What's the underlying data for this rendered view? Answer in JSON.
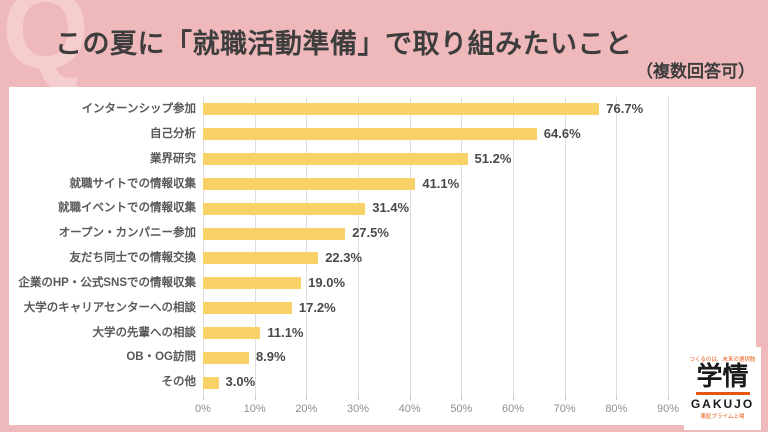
{
  "header": {
    "q_watermark": "Q",
    "title": "この夏に「就職活動準備」で取り組みたいこと",
    "note": "（複数回答可）"
  },
  "chart_data": {
    "type": "bar",
    "orientation": "horizontal",
    "title": "この夏に「就職活動準備」で取り組みたいこと",
    "subtitle": "（複数回答可）",
    "categories": [
      "インターンシップ参加",
      "自己分析",
      "業界研究",
      "就職サイトでの情報収集",
      "就職イベントでの情報収集",
      "オープン・カンパニー参加",
      "友だち同士での情報交換",
      "企業のHP・公式SNSでの情報収集",
      "大学のキャリアセンターへの相談",
      "大学の先輩への相談",
      "OB・OG訪問",
      "その他"
    ],
    "values": [
      76.7,
      64.6,
      51.2,
      41.1,
      31.4,
      27.5,
      22.3,
      19.0,
      17.2,
      11.1,
      8.9,
      3.0
    ],
    "value_labels": [
      "76.7%",
      "64.6%",
      "51.2%",
      "41.1%",
      "31.4%",
      "27.5%",
      "22.3%",
      "19.0%",
      "17.2%",
      "11.1%",
      "8.9%",
      "3.0%"
    ],
    "x_tick_labels": [
      "0%",
      "10%",
      "20%",
      "30%",
      "40%",
      "50%",
      "60%",
      "70%",
      "80%",
      "90%"
    ],
    "xlim": [
      0,
      90
    ],
    "grid": true,
    "legend": "none",
    "bar_color": "#F8D169"
  },
  "logo": {
    "tagline": "つくるのは、未来の選択肢",
    "brand": "学情",
    "brand_en": "GAKUJO",
    "subtext": "東証プライム上場"
  },
  "colors": {
    "background_pink": "#EFB8BA",
    "watermark_pink": "#F6CDCF",
    "card_white": "#FFFFFF",
    "bar_yellow": "#F8D169",
    "title_text": "#3D3D3D",
    "category_text": "#595959",
    "value_text": "#4A4A4A",
    "axis_text": "#8F8F8F",
    "gridline": "#DEDEDE",
    "logo_orange": "#E8550F"
  }
}
